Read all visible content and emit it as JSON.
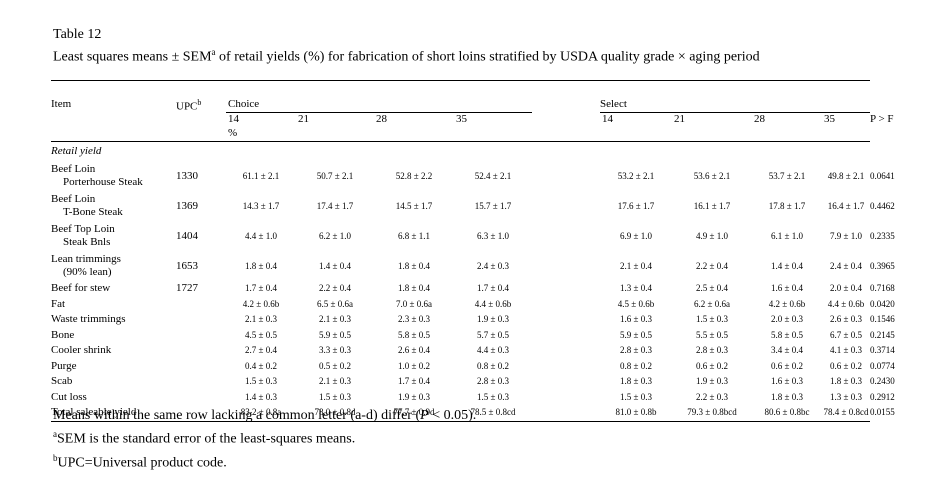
{
  "table_label": "Table 12",
  "caption_pre": "Least squares means ± SEM",
  "caption_sup": "a",
  "caption_post": " of retail yields (%) for fabrication of short loins stratified by USDA quality grade × aging period",
  "headers": {
    "item": "Item",
    "upc": "UPC",
    "upc_sup": "b",
    "choice": "Choice",
    "select": "Select",
    "days": [
      "14",
      "21",
      "28",
      "35",
      "14",
      "21",
      "28",
      "35"
    ],
    "pf": "P > F",
    "unit": "%"
  },
  "section": "Retail yield",
  "rows": [
    {
      "item": "Beef Loin",
      "item2": "Porterhouse Steak",
      "upc": "1330",
      "vals": [
        "61.1 ± 2.1",
        "50.7 ± 2.1",
        "52.8 ± 2.2",
        "52.4 ± 2.1",
        "53.2 ± 2.1",
        "53.6 ± 2.1",
        "53.7 ± 2.1",
        "49.8 ± 2.1"
      ],
      "p": "0.0641"
    },
    {
      "item": "Beef Loin",
      "item2": "T-Bone Steak",
      "upc": "1369",
      "vals": [
        "14.3 ± 1.7",
        "17.4 ± 1.7",
        "14.5 ± 1.7",
        "15.7 ± 1.7",
        "17.6 ± 1.7",
        "16.1 ± 1.7",
        "17.8 ± 1.7",
        "16.4 ± 1.7"
      ],
      "p": "0.4462"
    },
    {
      "item": "Beef Top Loin",
      "item2": "Steak Bnls",
      "upc": "1404",
      "vals": [
        "4.4 ± 1.0",
        "6.2 ± 1.0",
        "6.8 ± 1.1",
        "6.3 ± 1.0",
        "6.9 ± 1.0",
        "4.9 ± 1.0",
        "6.1 ± 1.0",
        "7.9 ± 1.0"
      ],
      "p": "0.2335"
    },
    {
      "item": "Lean trimmings",
      "item2": "(90% lean)",
      "upc": "1653",
      "vals": [
        "1.8 ± 0.4",
        "1.4 ± 0.4",
        "1.8 ± 0.4",
        "2.4 ± 0.3",
        "2.1 ± 0.4",
        "2.2 ± 0.4",
        "1.4 ± 0.4",
        "2.4 ± 0.4"
      ],
      "p": "0.3965"
    },
    {
      "item": "Beef for stew",
      "item2": "",
      "upc": "1727",
      "vals": [
        "1.7 ± 0.4",
        "2.2 ± 0.4",
        "1.8 ± 0.4",
        "1.7 ± 0.4",
        "1.3 ± 0.4",
        "2.5 ± 0.4",
        "1.6 ± 0.4",
        "2.0 ± 0.4"
      ],
      "p": "0.7168"
    },
    {
      "item": "Fat",
      "item2": "",
      "upc": "",
      "vals": [
        "4.2 ± 0.6b",
        "6.5 ± 0.6a",
        "7.0 ± 0.6a",
        "4.4 ± 0.6b",
        "4.5 ± 0.6b",
        "6.2 ± 0.6a",
        "4.2 ± 0.6b",
        "4.4 ± 0.6b"
      ],
      "p": "0.0420"
    },
    {
      "item": "Waste trimmings",
      "item2": "",
      "upc": "",
      "vals": [
        "2.1 ± 0.3",
        "2.1 ± 0.3",
        "2.3 ± 0.3",
        "1.9 ± 0.3",
        "1.6 ± 0.3",
        "1.5 ± 0.3",
        "2.0 ± 0.3",
        "2.6 ± 0.3"
      ],
      "p": "0.1546"
    },
    {
      "item": "Bone",
      "item2": "",
      "upc": "",
      "vals": [
        "4.5 ± 0.5",
        "5.9 ± 0.5",
        "5.8 ± 0.5",
        "5.7 ± 0.5",
        "5.9 ± 0.5",
        "5.5 ± 0.5",
        "5.8 ± 0.5",
        "6.7 ± 0.5"
      ],
      "p": "0.2145"
    },
    {
      "item": "Cooler shrink",
      "item2": "",
      "upc": "",
      "vals": [
        "2.7 ± 0.4",
        "3.3 ± 0.3",
        "2.6 ± 0.4",
        "4.4 ± 0.3",
        "2.8 ± 0.3",
        "2.8 ± 0.3",
        "3.4 ± 0.4",
        "4.1 ± 0.3"
      ],
      "p": "0.3714"
    },
    {
      "item": "Purge",
      "item2": "",
      "upc": "",
      "vals": [
        "0.4 ± 0.2",
        "0.5 ± 0.2",
        "1.0 ± 0.2",
        "0.8 ± 0.2",
        "0.8 ± 0.2",
        "0.6 ± 0.2",
        "0.6 ± 0.2",
        "0.6 ± 0.2"
      ],
      "p": "0.0774"
    },
    {
      "item": "Scab",
      "item2": "",
      "upc": "",
      "vals": [
        "1.5 ± 0.3",
        "2.1 ± 0.3",
        "1.7 ± 0.4",
        "2.8 ± 0.3",
        "1.8 ± 0.3",
        "1.9 ± 0.3",
        "1.6 ± 0.3",
        "1.8 ± 0.3"
      ],
      "p": "0.2430"
    },
    {
      "item": "Cut loss",
      "item2": "",
      "upc": "",
      "vals": [
        "1.4 ± 0.3",
        "1.5 ± 0.3",
        "1.9 ± 0.3",
        "1.5 ± 0.3",
        "1.5 ± 0.3",
        "2.2 ± 0.3",
        "1.8 ± 0.3",
        "1.3 ± 0.3"
      ],
      "p": "0.2912"
    },
    {
      "item": "Total saleable yield",
      "item2": "",
      "upc": "",
      "vals": [
        "83.2 ± 0.8a",
        "78.0 ± 0.8d",
        "77.7 ± 0.9d",
        "78.5 ± 0.8cd",
        "81.0 ± 0.8b",
        "79.3 ± 0.8bcd",
        "80.6 ± 0.8bc",
        "78.4 ± 0.8cd"
      ],
      "p": "0.0155"
    }
  ],
  "notes": {
    "means": "Means within the same row lacking a common letter (a-d) differ (",
    "means_p": "P",
    "means_end": " < 0.05).",
    "sem_sup": "a",
    "sem": "SEM is the standard error of the least-squares means.",
    "upc_sup": "b",
    "upc": "UPC=Universal product code."
  }
}
